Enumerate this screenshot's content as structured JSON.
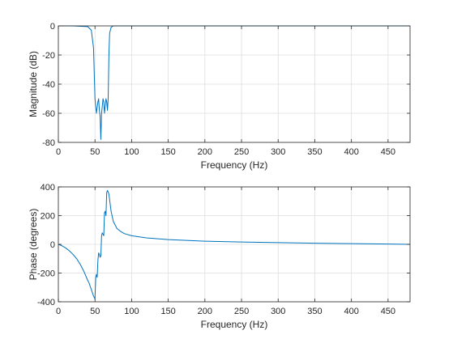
{
  "chart_data": [
    {
      "type": "line",
      "xlabel": "Frequency (Hz)",
      "ylabel": "Magnitude (dB)",
      "xlim": [
        0,
        480
      ],
      "ylim": [
        -80,
        0
      ],
      "xticks": [
        0,
        50,
        100,
        150,
        200,
        250,
        300,
        350,
        400,
        450
      ],
      "yticks": [
        0,
        -20,
        -40,
        -60,
        -80
      ],
      "grid": true,
      "line_color": "#0072BD",
      "x": [
        0,
        20,
        40,
        45,
        48,
        50,
        52,
        54,
        55,
        56,
        57,
        58,
        59,
        60,
        61,
        62,
        63,
        64,
        65,
        66,
        67,
        68,
        69,
        70,
        72,
        75,
        80,
        100,
        480
      ],
      "y": [
        0,
        0,
        -0.5,
        -3,
        -15,
        -50,
        -60,
        -52,
        -50,
        -58,
        -62,
        -78,
        -60,
        -55,
        -50,
        -52,
        -60,
        -55,
        -50,
        -52,
        -58,
        -50,
        -20,
        -5,
        -1,
        0,
        0,
        0,
        0
      ]
    },
    {
      "type": "line",
      "xlabel": "Frequency (Hz)",
      "ylabel": "Phase (degrees)",
      "xlim": [
        0,
        480
      ],
      "ylim": [
        -400,
        400
      ],
      "xticks": [
        0,
        50,
        100,
        150,
        200,
        250,
        300,
        350,
        400,
        450
      ],
      "yticks": [
        400,
        200,
        0,
        -200,
        -400
      ],
      "grid": true,
      "line_color": "#0072BD",
      "x": [
        0,
        5,
        10,
        15,
        20,
        25,
        30,
        35,
        40,
        42,
        44,
        46,
        48,
        50,
        51,
        52,
        53,
        54,
        55,
        56,
        57,
        58,
        59,
        60,
        61,
        62,
        63,
        64,
        65,
        66,
        67,
        68,
        69,
        70,
        72,
        75,
        80,
        85,
        90,
        100,
        120,
        150,
        200,
        250,
        300,
        350,
        400,
        450,
        480
      ],
      "y": [
        0,
        -10,
        -25,
        -45,
        -70,
        -100,
        -140,
        -190,
        -250,
        -270,
        -300,
        -330,
        -360,
        -380,
        -230,
        -210,
        -230,
        -110,
        -60,
        -70,
        -90,
        -80,
        60,
        80,
        70,
        60,
        220,
        230,
        200,
        360,
        375,
        365,
        350,
        310,
        230,
        160,
        110,
        90,
        75,
        60,
        45,
        33,
        22,
        16,
        12,
        8,
        5,
        2,
        0
      ]
    }
  ]
}
